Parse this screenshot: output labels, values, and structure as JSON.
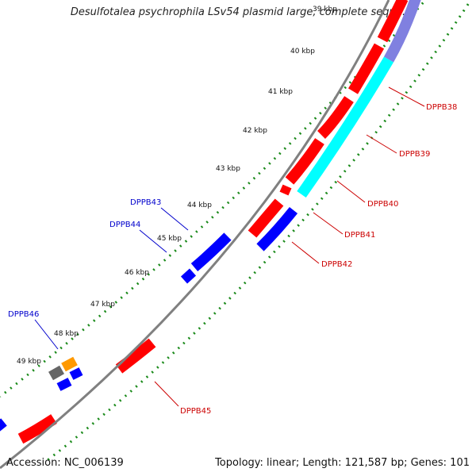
{
  "title": "Desulfotalea psychrophila LSv54 plasmid large, complete sequ...",
  "footer": {
    "accession": "Accession: NC_006139",
    "summary": "Topology: linear; Length: 121,587 bp; Genes: 101"
  },
  "colors": {
    "forward_cds": "#ff0000",
    "reverse_cds": "#0000ff",
    "cyan_feature": "#00ffff",
    "purple_feature": "#8080e0",
    "backbone": "#808080",
    "tick_marks": "#1a8a1a",
    "grey_feature": "#666666",
    "orange_feature": "#ff9900",
    "label_red": "#cc0000",
    "label_blue": "#0000cc"
  },
  "kbp_labels": [
    "39 kbp",
    "40 kbp",
    "41 kbp",
    "42 kbp",
    "43 kbp",
    "44 kbp",
    "45 kbp",
    "46 kbp",
    "47 kbp",
    "48 kbp",
    "49 kbp"
  ],
  "gene_labels": {
    "DPPB38": "DPPB38",
    "DPPB39": "DPPB39",
    "DPPB40": "DPPB40",
    "DPPB41": "DPPB41",
    "DPPB42": "DPPB42",
    "DPPB43": "DPPB43",
    "DPPB44": "DPPB44",
    "DPPB45": "DPPB45",
    "DPPB46": "DPPB46"
  }
}
